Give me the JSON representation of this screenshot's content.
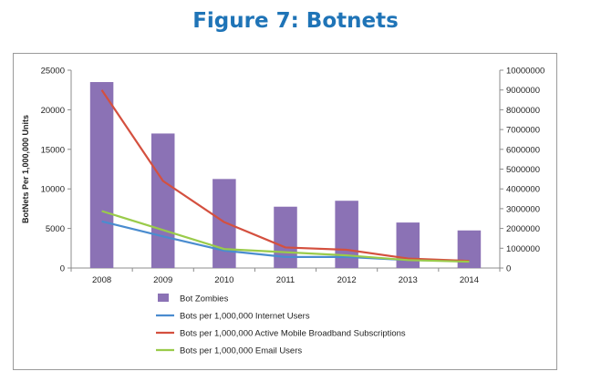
{
  "title": "Figure 7: Botnets",
  "colors": {
    "title": "#1f74b7",
    "bar": "#8b72b5",
    "internet": "#4a8ccf",
    "mobile": "#d4503f",
    "email": "#9acb4a"
  },
  "chart_data": {
    "type": "bar",
    "categories": [
      "2008",
      "2009",
      "2010",
      "2011",
      "2012",
      "2013",
      "2014"
    ],
    "ylabel": "BotNets Per 1,000,000 Units",
    "ylim": [
      0,
      25000
    ],
    "y_ticks": [
      "0",
      "5000",
      "10000",
      "15000",
      "20000",
      "25000"
    ],
    "y2lim": [
      0,
      10000000
    ],
    "y2_ticks": [
      "0",
      "1000000",
      "2000000",
      "3000000",
      "4000000",
      "5000000",
      "6000000",
      "7000000",
      "8000000",
      "9000000",
      "10000000"
    ],
    "grid": false,
    "legend_position": "bottom",
    "series": [
      {
        "name": "Bot Zombies",
        "kind": "bar",
        "axis": "right",
        "color": "#8b72b5",
        "values": [
          9400000,
          6800000,
          4500000,
          3100000,
          3400000,
          2300000,
          1900000
        ]
      },
      {
        "name": "Bots per 1,000,000 Internet Users",
        "kind": "line",
        "axis": "left",
        "color": "#4a8ccf",
        "values": [
          5900,
          4000,
          2200,
          1400,
          1400,
          1000,
          900
        ]
      },
      {
        "name": "Bots per 1,000,000 Active Mobile Broadband Subscriptions",
        "kind": "line",
        "axis": "left",
        "color": "#d4503f",
        "values": [
          22500,
          11000,
          5800,
          2600,
          2300,
          1200,
          900
        ]
      },
      {
        "name": "Bots per 1,000,000 Email Users",
        "kind": "line",
        "axis": "left",
        "color": "#9acb4a",
        "values": [
          7200,
          4800,
          2400,
          null,
          1600,
          1000,
          800
        ]
      }
    ]
  }
}
